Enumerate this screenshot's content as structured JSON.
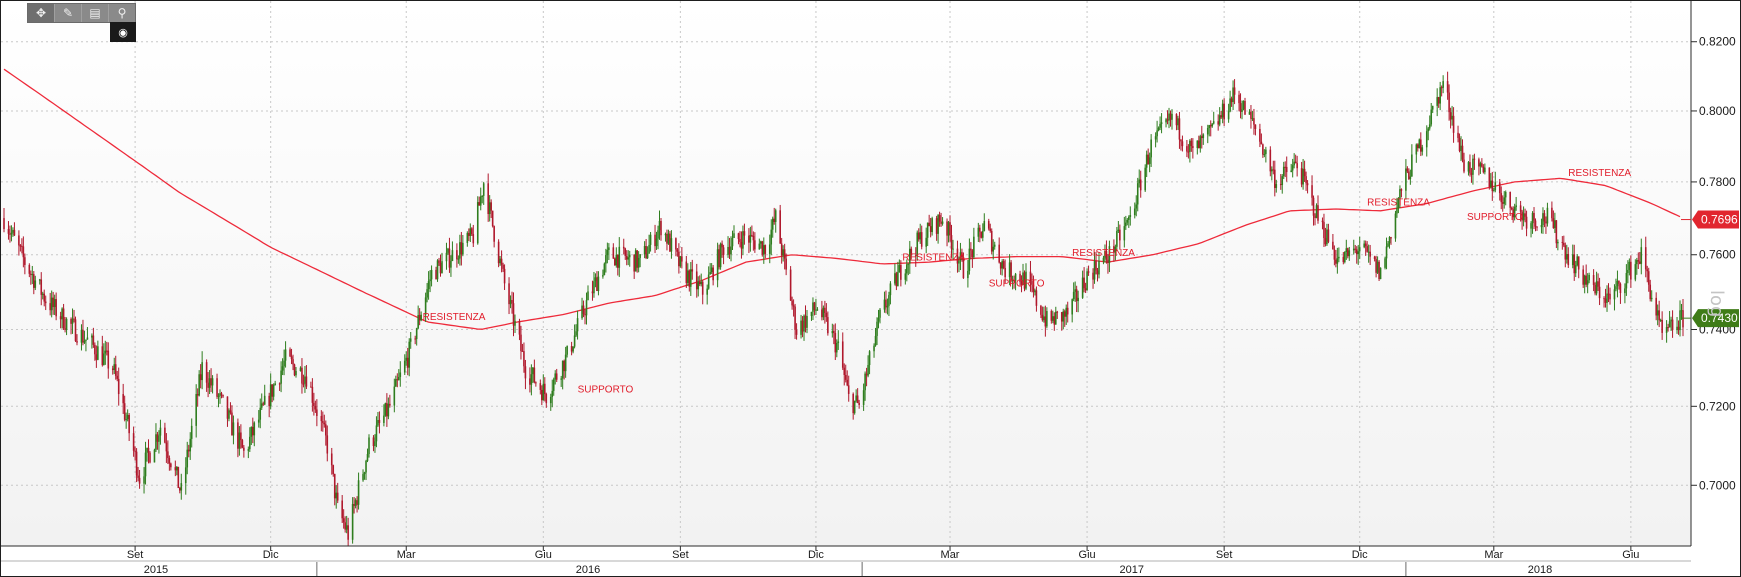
{
  "toolbar": {
    "tools": [
      {
        "name": "crosshair-tool",
        "icon": "crosshair-icon",
        "glyph": "✥"
      },
      {
        "name": "draw-line-tool",
        "icon": "pencil-line-icon",
        "glyph": "✎"
      },
      {
        "name": "notes-tool",
        "icon": "notes-icon",
        "glyph": "▤"
      },
      {
        "name": "zoom-tool",
        "icon": "magnifier-icon",
        "glyph": "⚲"
      }
    ],
    "settings_icon": "settings-icon",
    "settings_glyph": "◉"
  },
  "side_tag": "log",
  "colors": {
    "plot_background": "#f2f2f2",
    "grid": "#c8c8c8",
    "up_candle": "#2e7d1e",
    "down_candle": "#b0182c",
    "moving_average": "#ee2a3a",
    "price_tag": "#3f7c18",
    "ma_tag": "#e1262f",
    "annotation": "#e11c2a"
  },
  "chart_data": {
    "type": "line",
    "subtype": "candlestick with moving average",
    "title": "",
    "xlabel": "",
    "ylabel": "",
    "y_scale": "log",
    "grid": "on",
    "x_range": [
      "2015-06-05",
      "2018-07-06"
    ],
    "y_range": [
      0.685,
      0.832
    ],
    "y_ticks": [
      0.7,
      0.72,
      0.74,
      0.76,
      0.78,
      0.8,
      0.82
    ],
    "y_tick_labels": [
      "0.7000",
      "0.7200",
      "0.7400",
      "0.7600",
      "0.7800",
      "0.8000",
      "0.8200"
    ],
    "x_month_ticks": [
      {
        "label": "Set",
        "date": "2015-09-01"
      },
      {
        "label": "Dic",
        "date": "2015-12-01"
      },
      {
        "label": "Mar",
        "date": "2016-03-01"
      },
      {
        "label": "Giu",
        "date": "2016-06-01"
      },
      {
        "label": "Set",
        "date": "2016-09-01"
      },
      {
        "label": "Dic",
        "date": "2016-12-01"
      },
      {
        "label": "Mar",
        "date": "2017-03-01"
      },
      {
        "label": "Giu",
        "date": "2017-06-01"
      },
      {
        "label": "Set",
        "date": "2017-09-01"
      },
      {
        "label": "Dic",
        "date": "2017-12-01"
      },
      {
        "label": "Mar",
        "date": "2018-03-01"
      },
      {
        "label": "Giu",
        "date": "2018-06-01"
      }
    ],
    "x_year_labels": [
      {
        "label": "2015",
        "center": "2015-09-15"
      },
      {
        "label": "2016",
        "center": "2016-07-01"
      },
      {
        "label": "2017",
        "center": "2017-07-01"
      },
      {
        "label": "2018",
        "center": "2018-04-01"
      }
    ],
    "year_boundaries": [
      "2016-01-01",
      "2017-01-01",
      "2018-01-01"
    ],
    "price_path": [
      [
        "2015-06-05",
        0.77
      ],
      [
        "2015-06-19",
        0.758
      ],
      [
        "2015-07-03",
        0.748
      ],
      [
        "2015-07-17",
        0.742
      ],
      [
        "2015-08-03",
        0.736
      ],
      [
        "2015-08-17",
        0.73
      ],
      [
        "2015-08-24",
        0.72
      ],
      [
        "2015-09-04",
        0.702
      ],
      [
        "2015-09-18",
        0.715
      ],
      [
        "2015-10-02",
        0.698
      ],
      [
        "2015-10-16",
        0.73
      ],
      [
        "2015-10-30",
        0.72
      ],
      [
        "2015-11-13",
        0.708
      ],
      [
        "2015-11-27",
        0.72
      ],
      [
        "2015-12-11",
        0.732
      ],
      [
        "2015-12-25",
        0.728
      ],
      [
        "2016-01-08",
        0.71
      ],
      [
        "2016-01-15",
        0.694
      ],
      [
        "2016-01-22",
        0.688
      ],
      [
        "2016-02-05",
        0.71
      ],
      [
        "2016-02-19",
        0.72
      ],
      [
        "2016-03-04",
        0.735
      ],
      [
        "2016-03-18",
        0.755
      ],
      [
        "2016-04-01",
        0.76
      ],
      [
        "2016-04-15",
        0.765
      ],
      [
        "2016-04-22",
        0.78
      ],
      [
        "2016-05-06",
        0.752
      ],
      [
        "2016-05-20",
        0.73
      ],
      [
        "2016-06-03",
        0.723
      ],
      [
        "2016-06-17",
        0.733
      ],
      [
        "2016-07-01",
        0.748
      ],
      [
        "2016-07-15",
        0.76
      ],
      [
        "2016-08-05",
        0.758
      ],
      [
        "2016-08-19",
        0.768
      ],
      [
        "2016-09-02",
        0.756
      ],
      [
        "2016-09-16",
        0.75
      ],
      [
        "2016-09-30",
        0.762
      ],
      [
        "2016-10-14",
        0.765
      ],
      [
        "2016-10-28",
        0.762
      ],
      [
        "2016-11-04",
        0.77
      ],
      [
        "2016-11-18",
        0.74
      ],
      [
        "2016-12-02",
        0.746
      ],
      [
        "2016-12-16",
        0.735
      ],
      [
        "2016-12-23",
        0.722
      ],
      [
        "2016-12-30",
        0.72
      ],
      [
        "2017-01-13",
        0.743
      ],
      [
        "2017-01-27",
        0.756
      ],
      [
        "2017-02-10",
        0.765
      ],
      [
        "2017-02-24",
        0.77
      ],
      [
        "2017-03-10",
        0.756
      ],
      [
        "2017-03-24",
        0.768
      ],
      [
        "2017-04-07",
        0.756
      ],
      [
        "2017-04-21",
        0.753
      ],
      [
        "2017-05-05",
        0.742
      ],
      [
        "2017-05-19",
        0.744
      ],
      [
        "2017-06-02",
        0.755
      ],
      [
        "2017-06-16",
        0.76
      ],
      [
        "2017-06-30",
        0.77
      ],
      [
        "2017-07-14",
        0.79
      ],
      [
        "2017-07-28",
        0.798
      ],
      [
        "2017-08-11",
        0.788
      ],
      [
        "2017-08-25",
        0.795
      ],
      [
        "2017-09-08",
        0.805
      ],
      [
        "2017-09-22",
        0.795
      ],
      [
        "2017-10-06",
        0.78
      ],
      [
        "2017-10-20",
        0.785
      ],
      [
        "2017-11-03",
        0.77
      ],
      [
        "2017-11-17",
        0.758
      ],
      [
        "2017-12-01",
        0.762
      ],
      [
        "2017-12-15",
        0.755
      ],
      [
        "2017-12-29",
        0.778
      ],
      [
        "2018-01-12",
        0.792
      ],
      [
        "2018-01-26",
        0.808
      ],
      [
        "2018-02-09",
        0.785
      ],
      [
        "2018-02-23",
        0.782
      ],
      [
        "2018-03-09",
        0.775
      ],
      [
        "2018-03-23",
        0.77
      ],
      [
        "2018-04-06",
        0.77
      ],
      [
        "2018-04-20",
        0.76
      ],
      [
        "2018-05-04",
        0.752
      ],
      [
        "2018-05-18",
        0.748
      ],
      [
        "2018-06-01",
        0.756
      ],
      [
        "2018-06-08",
        0.76
      ],
      [
        "2018-06-22",
        0.738
      ],
      [
        "2018-07-06",
        0.743
      ]
    ],
    "moving_average_path": [
      [
        "2015-06-05",
        0.812
      ],
      [
        "2015-08-01",
        0.795
      ],
      [
        "2015-10-01",
        0.777
      ],
      [
        "2015-12-01",
        0.762
      ],
      [
        "2016-02-01",
        0.75
      ],
      [
        "2016-03-15",
        0.742
      ],
      [
        "2016-04-20",
        0.74
      ],
      [
        "2016-05-15",
        0.742
      ],
      [
        "2016-06-15",
        0.744
      ],
      [
        "2016-07-15",
        0.747
      ],
      [
        "2016-08-15",
        0.749
      ],
      [
        "2016-09-15",
        0.753
      ],
      [
        "2016-10-15",
        0.758
      ],
      [
        "2016-11-15",
        0.76
      ],
      [
        "2016-12-15",
        0.759
      ],
      [
        "2017-01-15",
        0.7575
      ],
      [
        "2017-02-15",
        0.758
      ],
      [
        "2017-03-15",
        0.759
      ],
      [
        "2017-04-15",
        0.7595
      ],
      [
        "2017-05-15",
        0.7595
      ],
      [
        "2017-06-15",
        0.758
      ],
      [
        "2017-07-15",
        0.76
      ],
      [
        "2017-08-15",
        0.763
      ],
      [
        "2017-09-15",
        0.768
      ],
      [
        "2017-10-15",
        0.772
      ],
      [
        "2017-11-15",
        0.7725
      ],
      [
        "2017-12-15",
        0.772
      ],
      [
        "2018-01-15",
        0.774
      ],
      [
        "2018-02-15",
        0.7775
      ],
      [
        "2018-03-15",
        0.78
      ],
      [
        "2018-04-15",
        0.781
      ],
      [
        "2018-05-15",
        0.779
      ],
      [
        "2018-06-15",
        0.774
      ],
      [
        "2018-07-06",
        0.77
      ]
    ],
    "last_price": {
      "value": 0.743,
      "label": "0.7430"
    },
    "moving_average_last": {
      "value": 0.7696,
      "label": "0.7696"
    },
    "annotations": [
      {
        "text": "RESISTENZA",
        "x": "2016-03-12",
        "y": 0.7425
      },
      {
        "text": "SUPPORTO",
        "x": "2016-06-24",
        "y": 0.7235
      },
      {
        "text": "RESISTENZA",
        "x": "2017-01-28",
        "y": 0.7585
      },
      {
        "text": "SUPPORTO",
        "x": "2017-03-27",
        "y": 0.7515
      },
      {
        "text": "RESISTENZA",
        "x": "2017-05-22",
        "y": 0.7597
      },
      {
        "text": "RESISTENZA",
        "x": "2017-12-06",
        "y": 0.7735
      },
      {
        "text": "SUPPORTO",
        "x": "2018-02-11",
        "y": 0.7695
      },
      {
        "text": "RESISTENZA",
        "x": "2018-04-20",
        "y": 0.7817
      }
    ]
  }
}
